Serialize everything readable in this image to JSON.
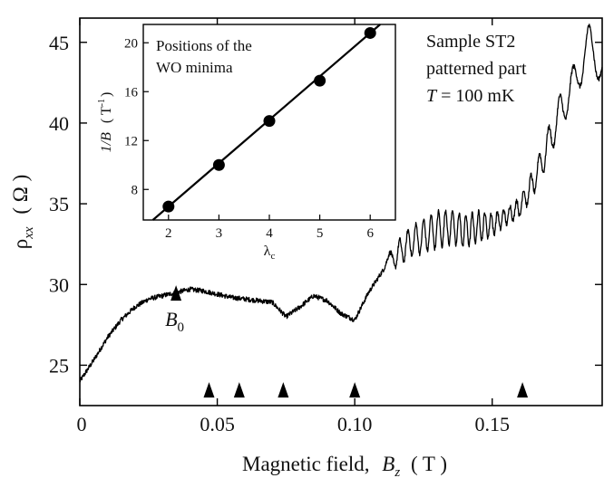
{
  "chart_data": [
    {
      "type": "line",
      "role": "main",
      "title": "",
      "xlabel": "Magnetic field, B_z ( T )",
      "xlabel_parts": {
        "prefix": "Magnetic field,",
        "var": "B",
        "sub": "z",
        "unit": "( T )"
      },
      "ylabel": "ρ_xx ( Ω )",
      "ylabel_parts": {
        "var": "ρ",
        "sub": "xx",
        "unit": "( Ω )"
      },
      "xlim": [
        0,
        0.19
      ],
      "ylim": [
        22.5,
        46.5
      ],
      "x_ticks": [
        0,
        0.05,
        0.1,
        0.15
      ],
      "x_tick_labels": [
        "0",
        "0.05",
        "0.10",
        "0.15"
      ],
      "y_ticks": [
        25,
        30,
        35,
        40,
        45
      ],
      "y_tick_labels": [
        "25",
        "30",
        "35",
        "40",
        "45"
      ],
      "series": [
        {
          "name": "ρxx",
          "x": [
            0,
            0.005,
            0.01,
            0.015,
            0.02,
            0.025,
            0.03,
            0.035,
            0.04,
            0.045,
            0.05,
            0.055,
            0.06,
            0.065,
            0.07,
            0.075,
            0.08,
            0.085,
            0.09,
            0.095,
            0.1,
            0.105,
            0.11,
            0.115,
            0.12,
            0.125,
            0.13,
            0.135,
            0.14,
            0.145,
            0.15,
            0.155,
            0.16,
            0.165,
            0.17,
            0.175,
            0.18,
            0.185,
            0.19
          ],
          "y": [
            24.0,
            25.3,
            26.7,
            27.8,
            28.6,
            29.1,
            29.3,
            29.5,
            29.7,
            29.6,
            29.4,
            29.2,
            29.1,
            29.0,
            28.9,
            28.0,
            28.6,
            29.3,
            29.0,
            28.2,
            27.8,
            29.5,
            30.8,
            31.8,
            32.6,
            33.0,
            33.4,
            33.6,
            33.3,
            33.6,
            33.7,
            34.2,
            34.8,
            36.3,
            38.5,
            40.8,
            42.5,
            44.9,
            43.5
          ],
          "osc_amp": [
            0.15,
            0.15,
            0.15,
            0.15,
            0.15,
            0.15,
            0.15,
            0.15,
            0.15,
            0.15,
            0.15,
            0.15,
            0.15,
            0.15,
            0.15,
            0.15,
            0.15,
            0.15,
            0.15,
            0.15,
            0.15,
            0.3,
            0.5,
            0.7,
            0.9,
            1.0,
            1.1,
            1.1,
            1.0,
            0.9,
            0.7,
            0.5,
            0.6,
            0.8,
            1.0,
            1.1,
            1.2,
            1.2,
            1.2
          ],
          "osc_freq": [
            0,
            0,
            0,
            0,
            0,
            0,
            0,
            0,
            0,
            0,
            0,
            0,
            0,
            0,
            0,
            0,
            0,
            0,
            0,
            0,
            0,
            0,
            0,
            0.8,
            0.85,
            0.9,
            0.95,
            1.0,
            1.05,
            1.1,
            1.1,
            1.1,
            1.0,
            0.85,
            0.7,
            0.55,
            0.45,
            0.4,
            0.4
          ],
          "noise_amp": 0.3
        }
      ],
      "markers": [
        {
          "x": 0.035,
          "y": 29.0,
          "label_var": "B",
          "label_sub": "0"
        },
        {
          "x": 0.047,
          "y": 23.0
        },
        {
          "x": 0.058,
          "y": 23.0
        },
        {
          "x": 0.074,
          "y": 23.0
        },
        {
          "x": 0.1,
          "y": 23.0
        },
        {
          "x": 0.161,
          "y": 23.0
        }
      ],
      "annotations": {
        "line1": "Sample ST2",
        "line2": "patterned part",
        "temp_var": "T",
        "temp_rest": " = 100 mK"
      }
    },
    {
      "type": "scatter",
      "role": "inset",
      "title": "Positions of the WO minima",
      "title_lines": [
        "Positions of the",
        "WO minima"
      ],
      "xlabel": "λc",
      "xlabel_parts": {
        "var": "λ",
        "sub": "c"
      },
      "ylabel": "1/B ( T⁻¹ )",
      "ylabel_parts": {
        "var": "1/B",
        "unit": "( T",
        "sup": "-1",
        "close": ")"
      },
      "xlim": [
        1.5,
        6.5
      ],
      "ylim": [
        5.5,
        21.5
      ],
      "x_ticks": [
        2,
        3,
        4,
        5,
        6
      ],
      "x_tick_labels": [
        "2",
        "3",
        "4",
        "5",
        "6"
      ],
      "y_ticks": [
        8,
        12,
        16,
        20
      ],
      "y_tick_labels": [
        "8",
        "12",
        "16",
        "20"
      ],
      "points": {
        "x": [
          2,
          3,
          4,
          5,
          6
        ],
        "y": [
          6.6,
          10.0,
          13.6,
          16.9,
          20.8
        ]
      },
      "fit": {
        "slope": 3.55,
        "intercept": -0.5
      }
    }
  ]
}
